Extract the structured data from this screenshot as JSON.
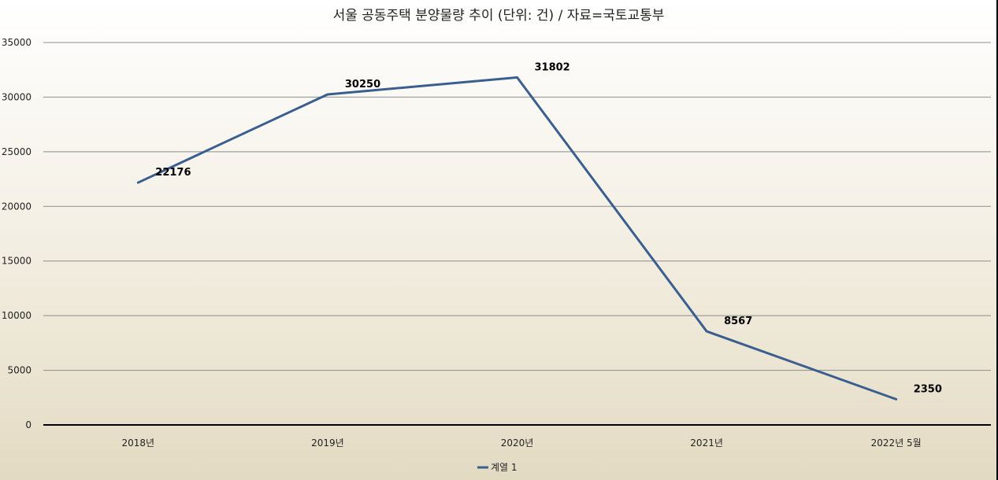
{
  "chart_data": {
    "type": "line",
    "title": "서울 공동주택 분양물량 추이 (단위: 건) / 자료=국토교통부",
    "xlabel": "",
    "ylabel": "",
    "categories": [
      "2018년",
      "2019년",
      "2020년",
      "2021년",
      "2022년 5월"
    ],
    "series": [
      {
        "name": "계열 1",
        "values": [
          22176,
          30250,
          31802,
          8567,
          2350
        ],
        "color": "#3a5f8f"
      }
    ],
    "ylim": [
      0,
      35000
    ],
    "yticks": [
      0,
      5000,
      10000,
      15000,
      20000,
      25000,
      30000,
      35000
    ],
    "grid": true,
    "legend": "bottom",
    "data_labels": true
  }
}
